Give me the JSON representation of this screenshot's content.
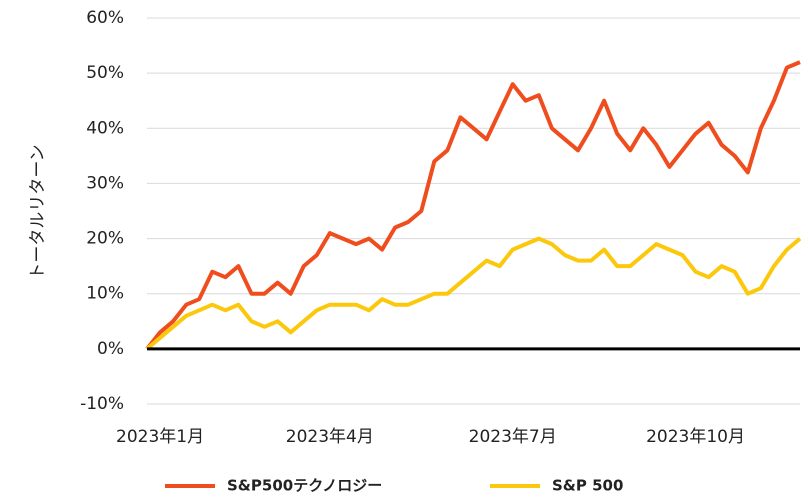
{
  "chart_data": {
    "type": "line",
    "y_label": "トータルリターン",
    "categories": [
      null,
      "2023年1月",
      null,
      null,
      null,
      null,
      null,
      null,
      null,
      null,
      null,
      null,
      null,
      null,
      "2023年4月",
      null,
      null,
      null,
      null,
      null,
      null,
      null,
      null,
      null,
      null,
      null,
      null,
      null,
      "2023年7月",
      null,
      null,
      null,
      null,
      null,
      null,
      null,
      null,
      null,
      null,
      null,
      null,
      null,
      "2023年10月",
      null,
      null,
      null,
      null,
      null,
      null,
      null,
      null
    ],
    "series": [
      {
        "name": "S&P500テクノロジー",
        "color": "#f04d1e",
        "values": [
          0,
          3,
          5,
          8,
          9,
          14,
          13,
          15,
          10,
          10,
          12,
          10,
          15,
          17,
          21,
          20,
          19,
          20,
          18,
          22,
          23,
          25,
          34,
          36,
          42,
          40,
          38,
          43,
          48,
          45,
          46,
          40,
          38,
          36,
          40,
          45,
          39,
          36,
          40,
          37,
          33,
          36,
          39,
          41,
          37,
          35,
          32,
          40,
          45,
          51,
          52
        ]
      },
      {
        "name": "S&P 500",
        "color": "#fcc80c",
        "values": [
          0,
          2,
          4,
          6,
          7,
          8,
          7,
          8,
          5,
          4,
          5,
          3,
          5,
          7,
          8,
          8,
          8,
          7,
          9,
          8,
          8,
          9,
          10,
          10,
          12,
          14,
          16,
          15,
          18,
          19,
          20,
          19,
          17,
          16,
          16,
          18,
          15,
          15,
          17,
          19,
          18,
          17,
          14,
          13,
          15,
          14,
          10,
          11,
          15,
          18,
          20
        ]
      }
    ],
    "ylim": [
      -10,
      60
    ],
    "yticks": [
      {
        "value": -10,
        "label": "-10%"
      },
      {
        "value": 0,
        "label": "0%"
      },
      {
        "value": 10,
        "label": "10%"
      },
      {
        "value": 20,
        "label": "20%"
      },
      {
        "value": 30,
        "label": "30%"
      },
      {
        "value": 40,
        "label": "40%"
      },
      {
        "value": 50,
        "label": "50%"
      },
      {
        "value": 60,
        "label": "60%"
      }
    ],
    "grid": true,
    "legend": "bottom"
  }
}
